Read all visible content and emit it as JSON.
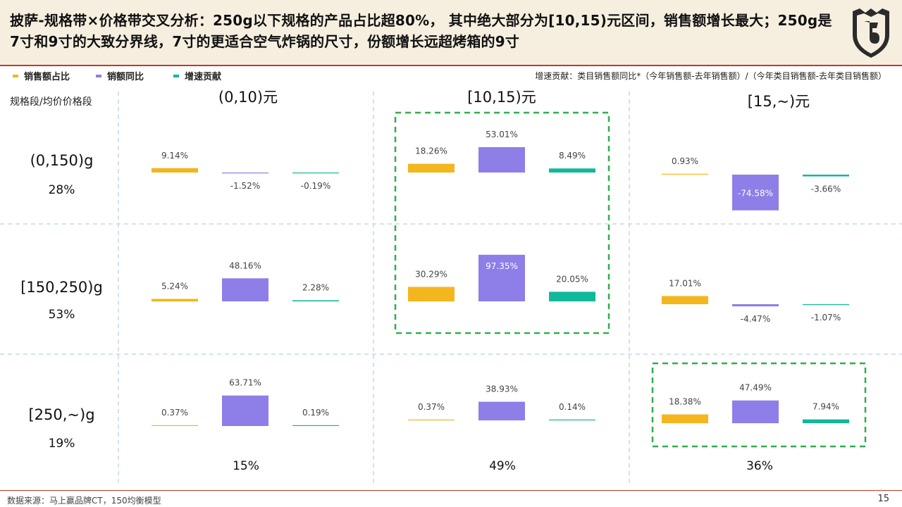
{
  "title": "披萨-规格带×价格带交叉分析：250g以下规格的产品占比超80%， 其中绝大部分为[10,15)元区间，销售额增长最大；250g是7寸和9寸的大致分界线，7寸的更适合空气炸锅的尺寸，份额增长远超烤箱的9寸",
  "formula_note": "增速贡献：类目销售额同比*（今年销售额-去年销售额）/（今年类目销售额-去年类目销售额）",
  "corner_label": "规格段/均价价格段",
  "source_note": "数据来源：马上赢品牌CT，150均衡模型",
  "page_number": "15",
  "colors": {
    "share": "#f3b61f",
    "yoy": "#8e7ee8",
    "contrib": "#12b89a",
    "highlight": "#2db04b",
    "accent": "#c0392b"
  },
  "chart_data": {
    "type": "bar",
    "series": [
      {
        "name": "销售额占比",
        "color": "#f3b61f"
      },
      {
        "name": "销额同比",
        "color": "#8e7ee8"
      },
      {
        "name": "增速贡献",
        "color": "#12b89a"
      }
    ],
    "columns": [
      {
        "label": "(0,10)元",
        "share": "15%"
      },
      {
        "label": "[10,15)元",
        "share": "49%"
      },
      {
        "label": "[15,~)元",
        "share": "36%"
      }
    ],
    "rows": [
      {
        "label": "(0,150)g",
        "share": "28%"
      },
      {
        "label": "[150,250)g",
        "share": "53%"
      },
      {
        "label": "[250,~)g",
        "share": "19%"
      }
    ],
    "cells": [
      [
        [
          9.14,
          -1.52,
          -0.19
        ],
        [
          18.26,
          53.01,
          8.49
        ],
        [
          0.93,
          -74.58,
          -3.66
        ]
      ],
      [
        [
          5.24,
          48.16,
          2.28
        ],
        [
          30.29,
          97.35,
          20.05
        ],
        [
          17.01,
          -4.47,
          -1.07
        ]
      ],
      [
        [
          0.37,
          63.71,
          0.19
        ],
        [
          0.37,
          38.93,
          0.14
        ],
        [
          18.38,
          47.49,
          7.94
        ]
      ]
    ],
    "highlighted": [
      [
        0,
        1
      ],
      [
        1,
        1
      ],
      [
        2,
        2
      ]
    ],
    "unit": "%"
  }
}
